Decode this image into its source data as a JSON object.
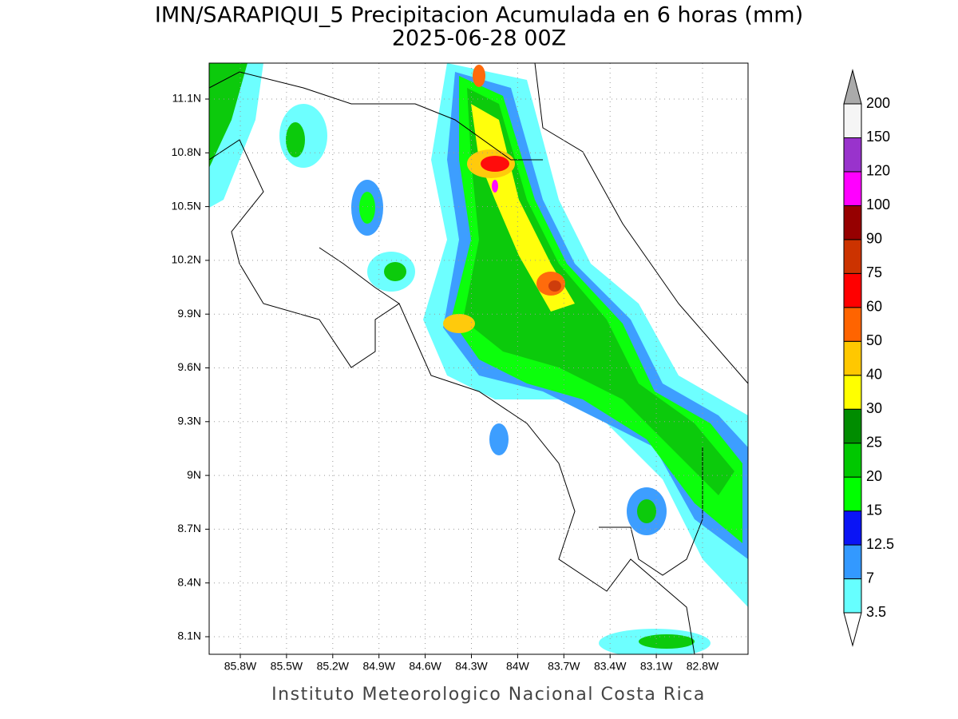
{
  "title": "IMN/SARAPIQUI_5 Precipitacion Acumulada en 6 horas (mm)",
  "subtitle": "2025-06-28 00Z",
  "map": {
    "lat_ticks": [
      "11.1N",
      "10.8N",
      "10.5N",
      "10.2N",
      "9.9N",
      "9.6N",
      "9.3N",
      "9N",
      "8.7N",
      "8.4N",
      "8.1N"
    ],
    "lon_ticks": [
      "85.8W",
      "85.5W",
      "85.2W",
      "84.9W",
      "84.6W",
      "84.3W",
      "84W",
      "83.7W",
      "83.4W",
      "83.1W",
      "82.8W"
    ]
  },
  "colorbar": {
    "levels": [
      3.5,
      7,
      12.5,
      15,
      20,
      25,
      30,
      40,
      50,
      60,
      75,
      90,
      100,
      120,
      150,
      200
    ],
    "colors": [
      "#66ffff",
      "#3399ff",
      "#0a14f5",
      "#00ff00",
      "#00c800",
      "#008c00",
      "#ffff00",
      "#ffc800",
      "#ff6400",
      "#ff0000",
      "#cc3300",
      "#960000",
      "#ff00ff",
      "#9933cc",
      "#f5f5f5"
    ],
    "under_color": "#ffffff",
    "over_color": "#aaaaaa"
  },
  "footer": "Instituto Meteorologico Nacional Costa Rica"
}
